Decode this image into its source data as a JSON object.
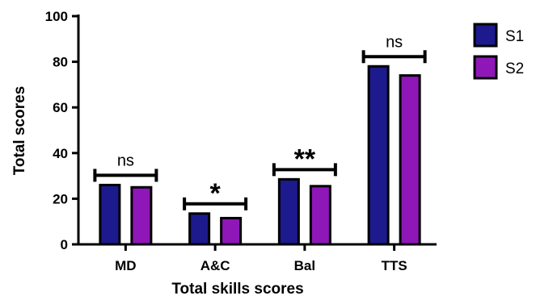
{
  "chart_data": {
    "type": "bar",
    "categories": [
      "MD",
      "A&C",
      "Bal",
      "TTS"
    ],
    "series": [
      {
        "name": "S1",
        "values": [
          26,
          13.5,
          28.5,
          78
        ],
        "color": "#1c1a8c"
      },
      {
        "name": "S2",
        "values": [
          25,
          11.5,
          25.5,
          74
        ],
        "color": "#8f17b8"
      }
    ],
    "xlabel": "Total skills scores",
    "ylabel": "Total scores",
    "ylim": [
      0,
      100
    ],
    "yticks": [
      "0",
      "20",
      "40",
      "60",
      "80",
      "100"
    ],
    "grid": false,
    "legend_position": "top-right",
    "annotations": [
      {
        "category": "MD",
        "text": "ns"
      },
      {
        "category": "A&C",
        "text": "*"
      },
      {
        "category": "Bal",
        "text": "**"
      },
      {
        "category": "TTS",
        "text": "ns"
      }
    ]
  }
}
